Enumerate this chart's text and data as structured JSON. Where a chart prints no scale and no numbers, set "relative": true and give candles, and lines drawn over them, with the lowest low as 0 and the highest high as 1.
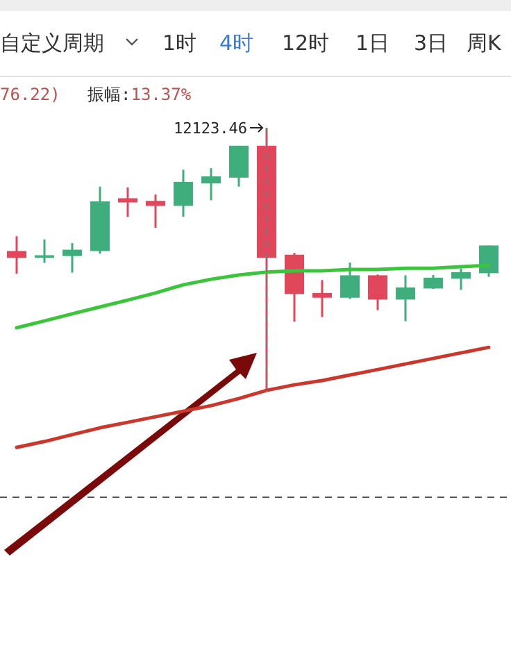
{
  "chart_data": {
    "type": "candlestick",
    "relative": true,
    "categories": [
      null,
      null,
      null,
      null,
      null,
      null,
      null,
      null,
      null,
      null,
      null,
      null,
      null,
      null,
      null,
      null,
      null,
      null
    ],
    "ohlc": [
      [
        0.533,
        0.589,
        0.447,
        0.507
      ],
      [
        0.507,
        0.577,
        0.488,
        0.517
      ],
      [
        0.514,
        0.563,
        0.451,
        0.538
      ],
      [
        0.533,
        0.777,
        0.523,
        0.721
      ],
      [
        0.733,
        0.774,
        0.662,
        0.717
      ],
      [
        0.723,
        0.747,
        0.621,
        0.704
      ],
      [
        0.704,
        0.841,
        0.663,
        0.795
      ],
      [
        0.789,
        0.847,
        0.725,
        0.816
      ],
      [
        0.811,
        0.932,
        0.777,
        0.932
      ],
      [
        0.932,
        1,
        0,
        0.507
      ],
      [
        0.519,
        0.526,
        0.265,
        0.37
      ],
      [
        0.374,
        0.423,
        0.283,
        0.356
      ],
      [
        0.356,
        0.489,
        0.351,
        0.441
      ],
      [
        0.441,
        0.444,
        0.309,
        0.349
      ],
      [
        0.349,
        0.441,
        0.267,
        0.395
      ],
      [
        0.391,
        0.442,
        0.389,
        0.432
      ],
      [
        0.428,
        0.467,
        0.386,
        0.453
      ],
      [
        0.449,
        0.554,
        0.435,
        0.554
      ]
    ],
    "colors": [
      "#e0475a",
      "#3fae7c",
      "#3fae7c",
      "#3fae7c",
      "#e0475a",
      "#e0475a",
      "#3fae7c",
      "#3fae7c",
      "#3fae7c",
      "#e0475a",
      "#e0475a",
      "#e0475a",
      "#3fae7c",
      "#e0475a",
      "#3fae7c",
      "#3fae7c",
      "#3fae7c",
      "#3fae7c"
    ],
    "series": [
      {
        "type": "line",
        "color": "#3cc53c",
        "values": [
          0.242,
          0.268,
          0.295,
          0.321,
          0.347,
          0.374,
          0.405,
          0.426,
          0.442,
          0.453,
          0.458,
          0.458,
          0.463,
          0.463,
          0.468,
          0.468,
          0.474,
          0.479
        ]
      },
      {
        "type": "line",
        "color": "#c8382c",
        "values": [
          -0.211,
          -0.189,
          -0.163,
          -0.137,
          -0.116,
          -0.095,
          -0.074,
          -0.053,
          -0.026,
          0.005,
          0.026,
          0.042,
          0.063,
          0.084,
          0.105,
          0.126,
          0.147,
          0.168
        ]
      }
    ],
    "ref_lines": [
      {
        "axis": "y",
        "value": -0.4,
        "color": "#555555",
        "line_style": "dashed"
      }
    ],
    "annotations": [
      "自定义周期",
      "1时",
      "4时",
      "12时",
      "1日",
      "3日",
      "周K",
      "76.22)",
      "振幅:13.37%",
      "12123.46"
    ]
  }
}
